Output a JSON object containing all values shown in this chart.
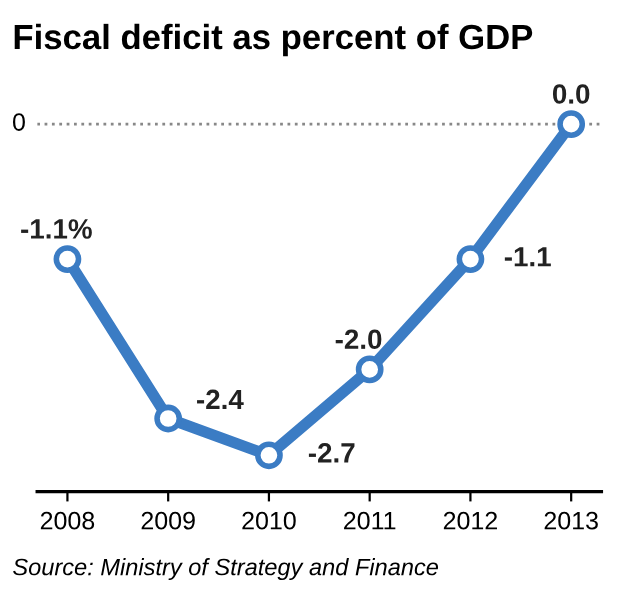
{
  "chart_data": {
    "type": "line",
    "title": "Fiscal deficit as percent of GDP",
    "categories": [
      "2008",
      "2009",
      "2010",
      "2011",
      "2012",
      "2013"
    ],
    "series": [
      {
        "color": "#3b7cc4",
        "values": [
          -1.1,
          -2.4,
          -2.7,
          -2.0,
          -1.1,
          0.0
        ],
        "value_labels": [
          "-1.1%",
          "-2.4",
          "-2.7",
          "-2.0",
          "-1.1",
          "0.0"
        ]
      }
    ],
    "marker": "circle",
    "line_style": "solid",
    "grid": false,
    "legend": false,
    "ref_lines": [
      {
        "axis": "y",
        "value": 0,
        "label": "0",
        "color": "#888888",
        "line_style": "dotted"
      }
    ],
    "annotations": [
      "Source: Ministry of Strategy and Finance"
    ]
  }
}
